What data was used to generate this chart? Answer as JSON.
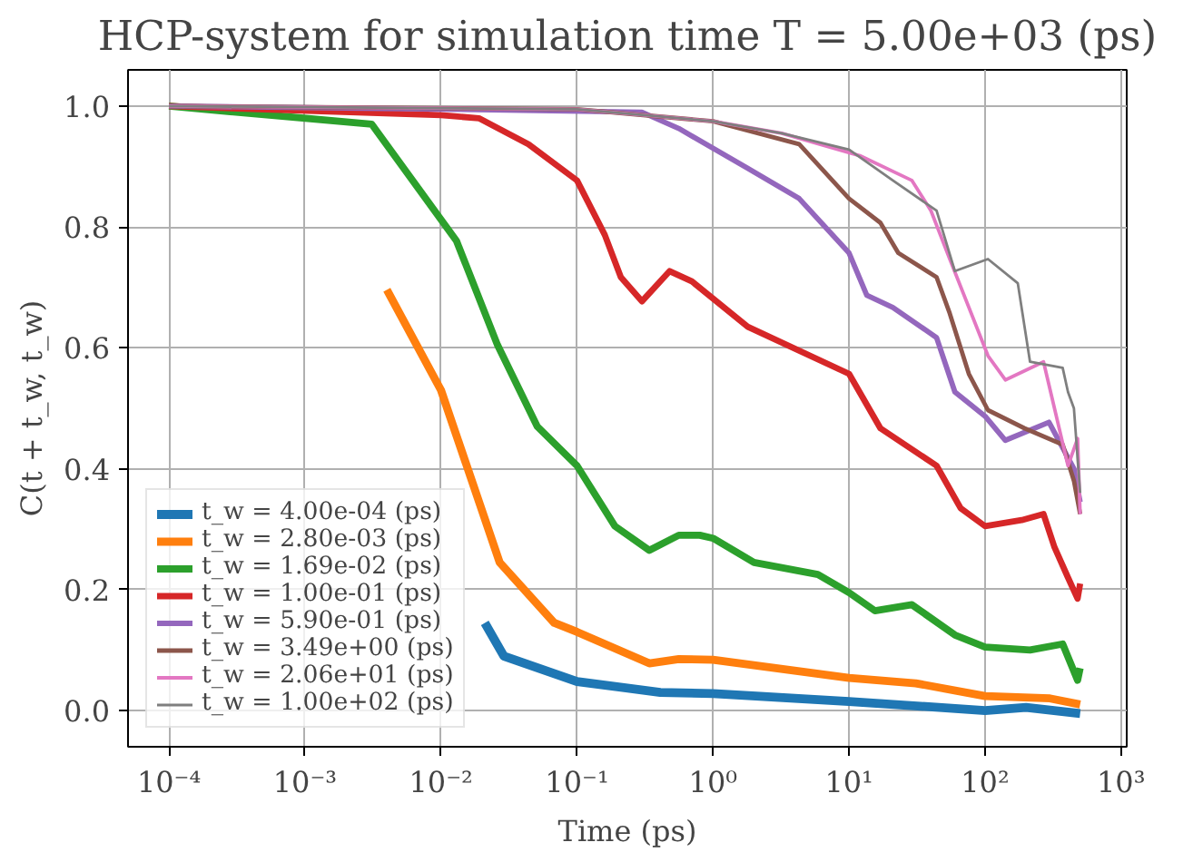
{
  "chart_data": {
    "type": "line",
    "title": "HCP-system for simulation time T = 5.00e+03 (ps)",
    "xlabel": "Time (ps)",
    "ylabel": "C(t + t_w, t_w)",
    "log": "x",
    "grid": true,
    "legend": "bottom left",
    "line_style": "solid",
    "xlim": [
      5e-05,
      1100
    ],
    "ylim": [
      -0.06,
      1.06
    ],
    "xticks": [
      {
        "value": 0.0001,
        "label": "10⁻⁴"
      },
      {
        "value": 0.001,
        "label": "10⁻³"
      },
      {
        "value": 0.01,
        "label": "10⁻²"
      },
      {
        "value": 0.1,
        "label": "10⁻¹"
      },
      {
        "value": 1,
        "label": "10⁰"
      },
      {
        "value": 10,
        "label": "10¹"
      },
      {
        "value": 100,
        "label": "10²"
      },
      {
        "value": 1000,
        "label": "10³"
      }
    ],
    "yticks": [
      {
        "value": 0,
        "label": "0.0"
      },
      {
        "value": 0.2,
        "label": "0.2"
      },
      {
        "value": 0.4,
        "label": "0.4"
      },
      {
        "value": 0.6,
        "label": "0.6"
      },
      {
        "value": 0.8,
        "label": "0.8"
      },
      {
        "value": 1,
        "label": "1.0"
      }
    ],
    "series": [
      {
        "name": "t_w = 4.00e-04 (ps)",
        "color": "#1f77b4",
        "x": [
          0.021,
          0.029,
          0.1,
          0.41,
          1,
          10,
          100,
          200,
          500
        ],
        "values": [
          0.145,
          0.09,
          0.048,
          0.03,
          0.028,
          0.015,
          0.0,
          0.005,
          -0.005
        ]
      },
      {
        "name": "t_w = 2.80e-03 (ps)",
        "color": "#ff7f0e",
        "x": [
          0.004,
          0.01,
          0.027,
          0.068,
          0.1,
          0.34,
          0.56,
          1,
          10,
          31,
          100,
          300,
          500
        ],
        "values": [
          0.696,
          0.53,
          0.245,
          0.145,
          0.13,
          0.078,
          0.085,
          0.084,
          0.054,
          0.045,
          0.024,
          0.02,
          0.01
        ]
      },
      {
        "name": "t_w = 1.69e-02 (ps)",
        "color": "#2ca02c",
        "x": [
          0.0001,
          0.0031,
          0.013,
          0.026,
          0.051,
          0.1,
          0.19,
          0.34,
          0.56,
          0.8,
          1,
          2,
          5.9,
          10,
          15.5,
          29,
          60,
          100,
          214,
          372,
          479,
          500
        ],
        "values": [
          1.0,
          0.97,
          0.777,
          0.605,
          0.47,
          0.405,
          0.305,
          0.265,
          0.29,
          0.29,
          0.285,
          0.245,
          0.225,
          0.195,
          0.165,
          0.175,
          0.125,
          0.105,
          0.1,
          0.11,
          0.05,
          0.07
        ]
      },
      {
        "name": "t_w = 1.00e-01 (ps)",
        "color": "#d62728",
        "x": [
          0.0001,
          0.01,
          0.019,
          0.044,
          0.1,
          0.16,
          0.21,
          0.3,
          0.48,
          0.7,
          1.8,
          10,
          17,
          44,
          66,
          100,
          186,
          269,
          324,
          407,
          479,
          500
        ],
        "values": [
          1.0,
          0.985,
          0.98,
          0.937,
          0.877,
          0.787,
          0.717,
          0.677,
          0.727,
          0.71,
          0.635,
          0.557,
          0.467,
          0.405,
          0.335,
          0.305,
          0.315,
          0.325,
          0.27,
          0.22,
          0.185,
          0.21
        ]
      },
      {
        "name": "t_w = 5.90e-01 (ps)",
        "color": "#9467bd",
        "x": [
          0.0001,
          0.01,
          0.3,
          0.56,
          1.8,
          4.3,
          10,
          13.5,
          21,
          44,
          60,
          100,
          141,
          295,
          450,
          500
        ],
        "values": [
          1.0,
          0.995,
          0.99,
          0.963,
          0.897,
          0.847,
          0.757,
          0.687,
          0.667,
          0.617,
          0.527,
          0.487,
          0.447,
          0.477,
          0.4,
          0.345
        ]
      },
      {
        "name": "t_w = 3.49e+00 (ps)",
        "color": "#8c564b",
        "x": [
          0.0001,
          0.1,
          1,
          4.3,
          10,
          17,
          23,
          44,
          55,
          76,
          105,
          195,
          372,
          450,
          500
        ],
        "values": [
          1.0,
          0.995,
          0.975,
          0.937,
          0.847,
          0.807,
          0.757,
          0.717,
          0.657,
          0.557,
          0.497,
          0.467,
          0.44,
          0.38,
          0.325
        ]
      },
      {
        "name": "t_w = 2.06e+01 (ps)",
        "color": "#e377c2",
        "x": [
          0.0001,
          0.1,
          1,
          3.2,
          12,
          29,
          40,
          55,
          76,
          105,
          141,
          269,
          407,
          479,
          500
        ],
        "values": [
          1.0,
          0.995,
          0.975,
          0.955,
          0.918,
          0.877,
          0.827,
          0.747,
          0.667,
          0.587,
          0.547,
          0.577,
          0.405,
          0.45,
          0.325
        ]
      },
      {
        "name": "t_w = 1.00e+02 (ps)",
        "color": "#7f7f7f",
        "x": [
          0.0001,
          0.1,
          1,
          3.2,
          10,
          21,
          44,
          60,
          105,
          174,
          214,
          372,
          407,
          450,
          500
        ],
        "values": [
          1.0,
          0.995,
          0.975,
          0.955,
          0.928,
          0.877,
          0.827,
          0.727,
          0.747,
          0.707,
          0.577,
          0.567,
          0.527,
          0.5,
          0.36
        ]
      }
    ]
  }
}
